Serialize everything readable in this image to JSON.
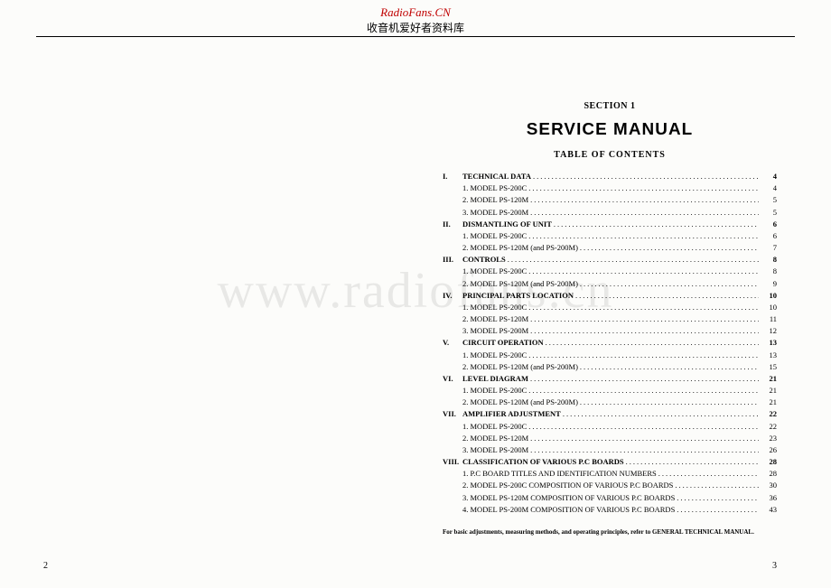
{
  "brand": {
    "name": "RadioFans.CN",
    "subtitle": "收音机爱好者资料库",
    "color": "#c00000"
  },
  "watermark": "www.radiofans.cn",
  "left_page_number": "2",
  "right_page_number": "3",
  "right": {
    "section_label": "SECTION 1",
    "title": "SERVICE MANUAL",
    "toc_title": "TABLE OF CONTENTS",
    "footnote": "For basic adjustments, measuring methods, and operating principles, refer to GENERAL TECHNICAL MANUAL.",
    "toc": [
      {
        "roman": "I.",
        "text": "TECHNICAL DATA",
        "page": "4",
        "bold": true
      },
      {
        "sub": true,
        "text": "1. MODEL PS-200C",
        "page": "4"
      },
      {
        "sub": true,
        "text": "2. MODEL PS-120M",
        "page": "5"
      },
      {
        "sub": true,
        "text": "3. MODEL PS-200M",
        "page": "5"
      },
      {
        "roman": "II.",
        "text": "DISMANTLING OF UNIT",
        "page": "6",
        "bold": true
      },
      {
        "sub": true,
        "text": "1. MODEL PS-200C",
        "page": "6"
      },
      {
        "sub": true,
        "text": "2. MODEL PS-120M (and PS-200M)",
        "page": "7"
      },
      {
        "roman": "III.",
        "text": "CONTROLS",
        "page": "8",
        "bold": true
      },
      {
        "sub": true,
        "text": "1. MODEL PS-200C",
        "page": "8"
      },
      {
        "sub": true,
        "text": "2. MODEL PS-120M (and PS-200M)",
        "page": "9"
      },
      {
        "roman": "IV.",
        "text": "PRINCIPAL PARTS LOCATION",
        "page": "10",
        "bold": true
      },
      {
        "sub": true,
        "text": "1. MODEL PS-200C",
        "page": "10"
      },
      {
        "sub": true,
        "text": "2. MODEL PS-120M",
        "page": "11"
      },
      {
        "sub": true,
        "text": "3. MODEL PS-200M",
        "page": "12"
      },
      {
        "roman": "V.",
        "text": "CIRCUIT OPERATION",
        "page": "13",
        "bold": true
      },
      {
        "sub": true,
        "text": "1. MODEL PS-200C",
        "page": "13"
      },
      {
        "sub": true,
        "text": "2. MODEL PS-120M (and PS-200M)",
        "page": "15"
      },
      {
        "roman": "VI.",
        "text": "LEVEL DIAGRAM",
        "page": "21",
        "bold": true
      },
      {
        "sub": true,
        "text": "1. MODEL PS-200C",
        "page": "21"
      },
      {
        "sub": true,
        "text": "2. MODEL PS-120M (and PS-200M)",
        "page": "21"
      },
      {
        "roman": "VII.",
        "text": "AMPLIFIER ADJUSTMENT",
        "page": "22",
        "bold": true
      },
      {
        "sub": true,
        "text": "1. MODEL PS-200C",
        "page": "22"
      },
      {
        "sub": true,
        "text": "2. MODEL PS-120M",
        "page": "23"
      },
      {
        "sub": true,
        "text": "3. MODEL PS-200M",
        "page": "26"
      },
      {
        "roman": "VIII.",
        "text": "CLASSIFICATION OF VARIOUS P.C BOARDS",
        "page": "28",
        "bold": true
      },
      {
        "sub": true,
        "text": "1. P.C BOARD TITLES AND IDENTIFICATION NUMBERS",
        "page": "28"
      },
      {
        "sub": true,
        "text": "2. MODEL PS-200C COMPOSITION OF VARIOUS P.C BOARDS",
        "page": "30"
      },
      {
        "sub": true,
        "text": "3. MODEL PS-120M COMPOSITION OF VARIOUS P.C BOARDS",
        "page": "36"
      },
      {
        "sub": true,
        "text": "4. MODEL PS-200M COMPOSITION OF VARIOUS P.C BOARDS",
        "page": "43"
      }
    ]
  }
}
